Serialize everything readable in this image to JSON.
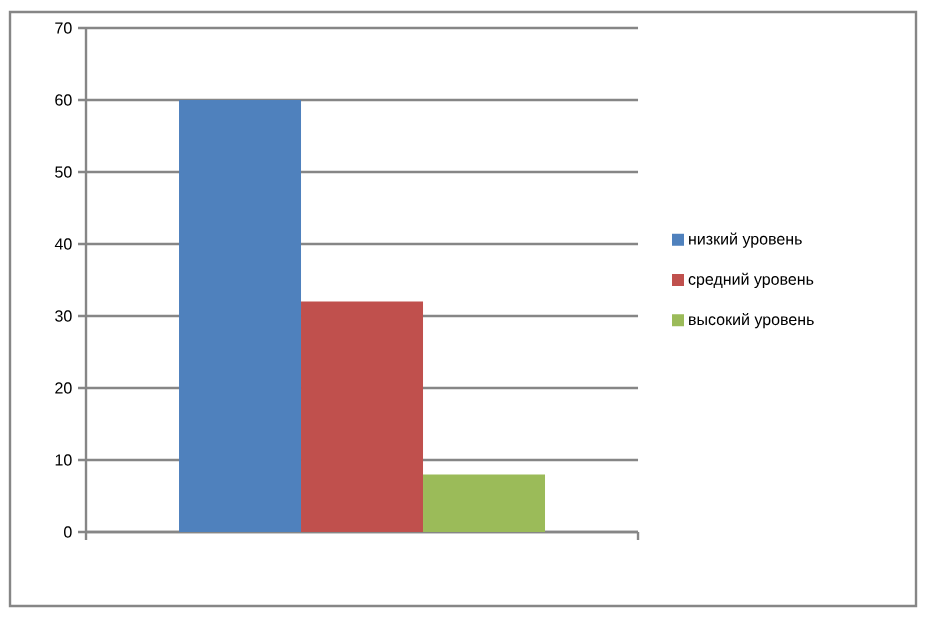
{
  "chart_data": {
    "type": "bar",
    "categories": [
      null
    ],
    "series": [
      {
        "name": "низкий уровень",
        "color": "#4f81bd",
        "values": [
          60
        ]
      },
      {
        "name": "средний уровень",
        "color": "#c0504d",
        "values": [
          32
        ]
      },
      {
        "name": "высокий уровень",
        "color": "#9bbb59",
        "values": [
          8
        ]
      }
    ],
    "ylim": [
      0,
      70
    ],
    "yticks": [
      0,
      10,
      20,
      30,
      40,
      50,
      60,
      70
    ],
    "grid": "y",
    "legend": "right",
    "tick_labels": "y"
  }
}
